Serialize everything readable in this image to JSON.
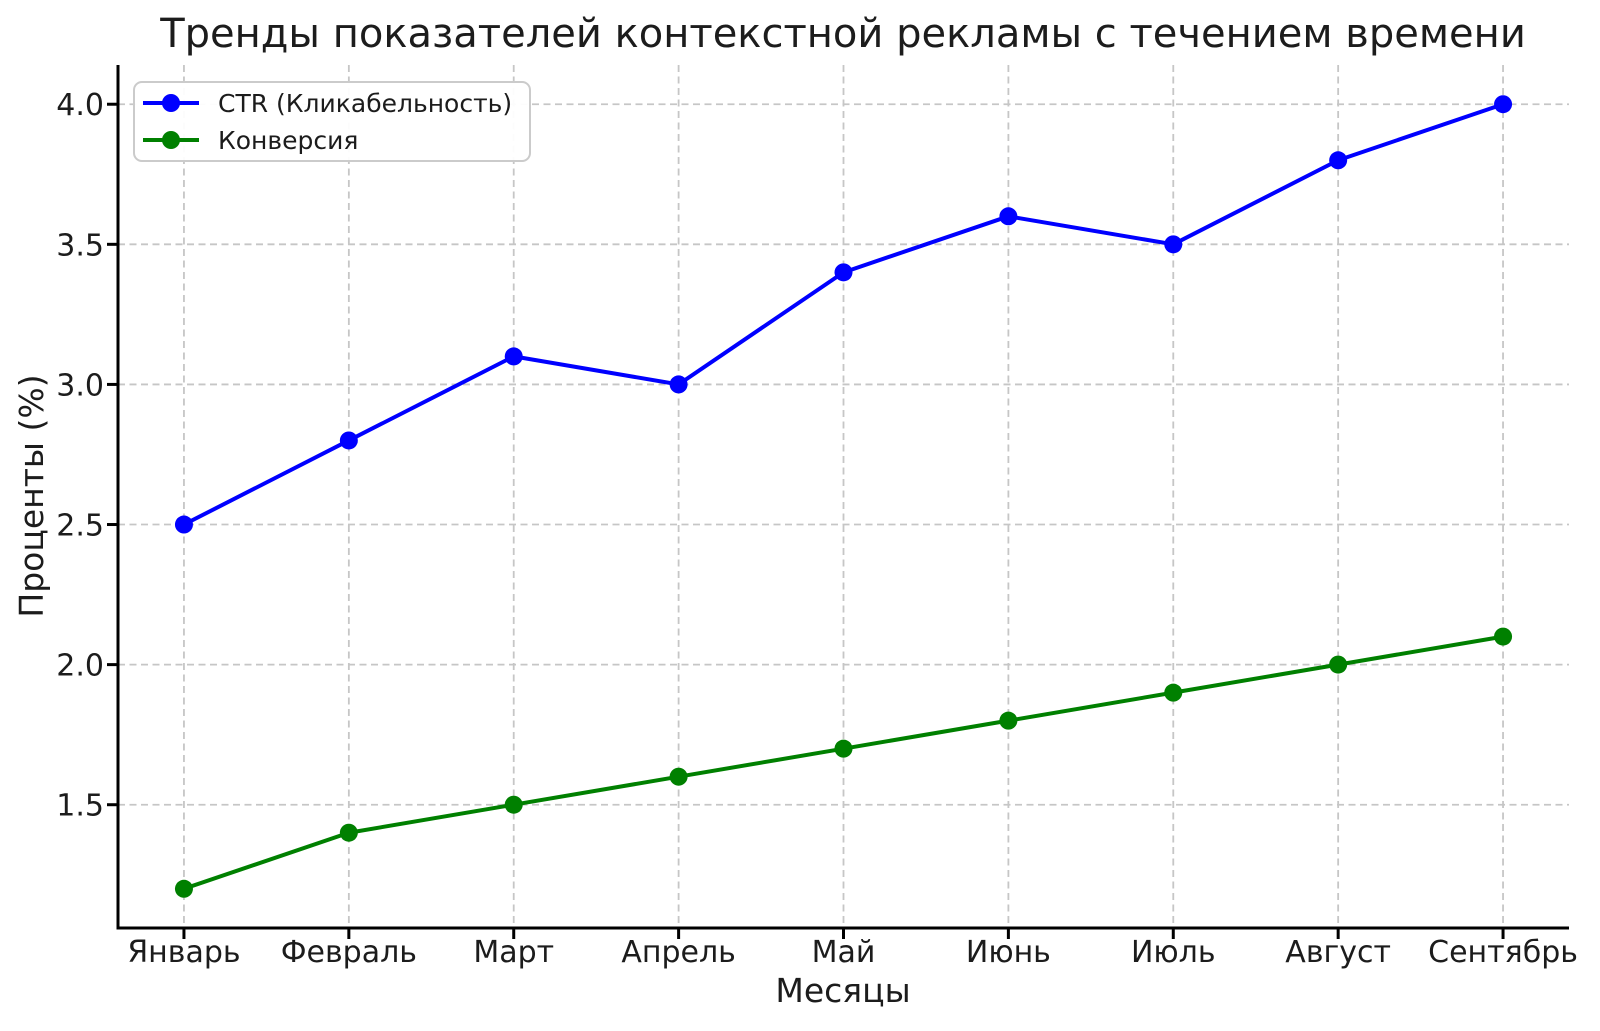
{
  "figure": {
    "background": "#ffffff",
    "text_color": "#1c1c1c",
    "grid_color": "#c6c6c6",
    "spine_color": "#000000"
  },
  "chart_data": {
    "type": "line",
    "title": "Тренды показателей контекстной рекламы с течением времени",
    "xlabel": "Месяцы",
    "ylabel": "Проценты (%)",
    "categories": [
      "Январь",
      "Февраль",
      "Март",
      "Апрель",
      "Май",
      "Июнь",
      "Июль",
      "Август",
      "Сентябрь"
    ],
    "series": [
      {
        "name": "CTR (Кликабельность)",
        "color": "#0000ff",
        "values": [
          2.5,
          2.8,
          3.1,
          3.0,
          3.4,
          3.6,
          3.5,
          3.8,
          4.0
        ]
      },
      {
        "name": "Конверсия",
        "color": "#008000",
        "values": [
          1.2,
          1.4,
          1.5,
          1.6,
          1.7,
          1.8,
          1.9,
          2.0,
          2.1
        ]
      }
    ],
    "yticks": [
      1.5,
      2.0,
      2.5,
      3.0,
      3.5,
      4.0
    ],
    "ylim": [
      1.06,
      4.14
    ],
    "xlim": [
      -0.4,
      8.4
    ],
    "grid": true,
    "grid_style": "dashed",
    "legend_position": "upper left",
    "marker": "circle"
  }
}
